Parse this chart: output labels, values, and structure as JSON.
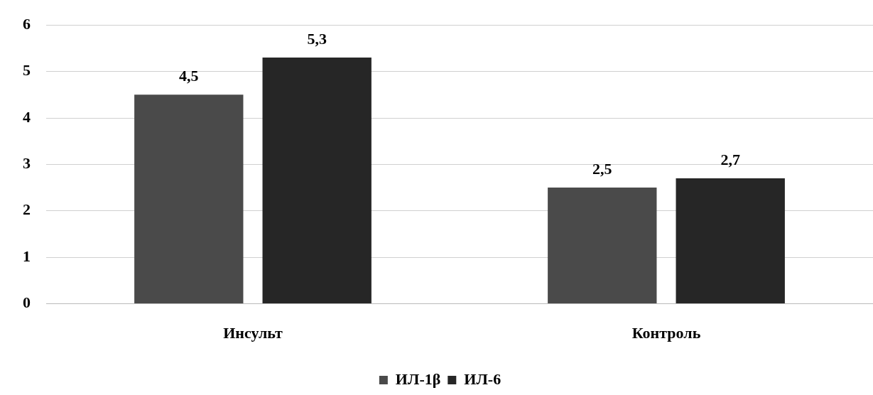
{
  "chart_data": {
    "type": "bar",
    "categories": [
      "Инсульт",
      "Контроль"
    ],
    "series": [
      {
        "name": "ИЛ-1β",
        "color": "#4a4a4a",
        "values": [
          4.5,
          2.5
        ],
        "value_labels": [
          "4,5",
          "2,5"
        ]
      },
      {
        "name": "ИЛ-6",
        "color": "#262626",
        "values": [
          5.3,
          2.7
        ],
        "value_labels": [
          "5,3",
          "2,7"
        ]
      }
    ],
    "ylim": [
      0,
      6
    ],
    "yticks": [
      0,
      1,
      2,
      3,
      4,
      5,
      6
    ],
    "grid": "y",
    "legend": "bottom"
  }
}
